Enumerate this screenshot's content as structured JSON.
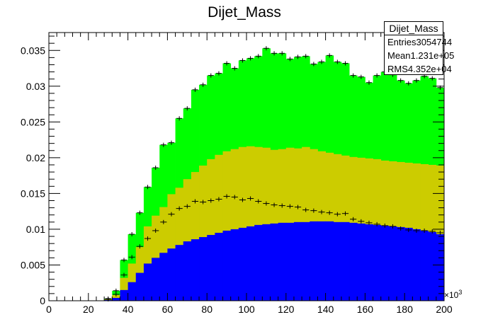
{
  "chart_data": {
    "type": "bar",
    "title": "Dijet_Mass",
    "xlabel": "",
    "ylabel": "",
    "x_multiplier_label": "×10",
    "x_multiplier_exponent": "3",
    "xlim": [
      0,
      200
    ],
    "ylim": [
      0,
      0.0375
    ],
    "x_ticks": [
      0,
      20,
      40,
      60,
      80,
      100,
      120,
      140,
      160,
      180,
      200
    ],
    "x_tick_labels": [
      "0",
      "20",
      "40",
      "60",
      "80",
      "100",
      "120",
      "140",
      "160",
      "180",
      "200"
    ],
    "y_ticks": [
      0,
      0.005,
      0.01,
      0.015,
      0.02,
      0.025,
      0.03,
      0.035
    ],
    "y_tick_labels": [
      "0",
      "0.005",
      "0.01",
      "0.015",
      "0.02",
      "0.025",
      "0.03",
      "0.035"
    ],
    "grid": false,
    "legend": "none",
    "bin_edges_start": 0,
    "bin_width": 4,
    "series": [
      {
        "fill": "#00ff00",
        "values": [
          0,
          0,
          0,
          0,
          0,
          0,
          0,
          0.0003,
          0.0014,
          0.0057,
          0.0093,
          0.0123,
          0.0159,
          0.0186,
          0.0218,
          0.0221,
          0.0255,
          0.0269,
          0.0295,
          0.0302,
          0.0315,
          0.0318,
          0.0332,
          0.0325,
          0.0336,
          0.0339,
          0.0342,
          0.0353,
          0.0346,
          0.0346,
          0.0338,
          0.0341,
          0.0342,
          0.0331,
          0.0334,
          0.0343,
          0.0334,
          0.0332,
          0.0315,
          0.0313,
          0.0305,
          0.0315,
          0.032,
          0.0316,
          0.0308,
          0.0304,
          0.0308,
          0.0314,
          0.0311,
          0.0298
        ]
      },
      {
        "fill": "#cccc00",
        "values": [
          0,
          0,
          0,
          0,
          0,
          0,
          0,
          0.0002,
          0.0008,
          0.0032,
          0.0052,
          0.0075,
          0.0104,
          0.0119,
          0.0131,
          0.0149,
          0.0158,
          0.017,
          0.018,
          0.0189,
          0.0198,
          0.0204,
          0.0209,
          0.0212,
          0.0215,
          0.0216,
          0.0215,
          0.0214,
          0.0211,
          0.0212,
          0.0214,
          0.0213,
          0.0215,
          0.0212,
          0.0209,
          0.0207,
          0.0205,
          0.0203,
          0.0201,
          0.02,
          0.0199,
          0.0198,
          0.0196,
          0.0195,
          0.0194,
          0.0193,
          0.0192,
          0.0191,
          0.019,
          0.0189
        ]
      },
      {
        "fill": "#0000ff",
        "values": [
          0,
          0,
          0,
          0,
          0,
          0,
          0,
          0.0001,
          0.0004,
          0.0015,
          0.0026,
          0.0039,
          0.0052,
          0.006,
          0.0067,
          0.0073,
          0.0078,
          0.0083,
          0.0086,
          0.0089,
          0.0092,
          0.0095,
          0.0098,
          0.01,
          0.0102,
          0.0104,
          0.0106,
          0.0107,
          0.0108,
          0.0109,
          0.0109,
          0.011,
          0.011,
          0.0111,
          0.0111,
          0.0111,
          0.011,
          0.011,
          0.0109,
          0.0108,
          0.0107,
          0.0106,
          0.0105,
          0.0104,
          0.0103,
          0.0102,
          0.01,
          0.0098,
          0.0096,
          0.0093
        ]
      },
      {
        "style": "error-points",
        "values": [
          0,
          0,
          0,
          0,
          0,
          0,
          0,
          0.0002,
          0.0009,
          0.0036,
          0.0061,
          0.0076,
          0.0087,
          0.0098,
          0.011,
          0.0121,
          0.0129,
          0.0132,
          0.0139,
          0.0138,
          0.014,
          0.0142,
          0.0146,
          0.0145,
          0.0141,
          0.0143,
          0.0139,
          0.0136,
          0.0134,
          0.0133,
          0.0132,
          0.0131,
          0.0127,
          0.0126,
          0.0124,
          0.0123,
          0.0121,
          0.0122,
          0.0114,
          0.0111,
          0.0109,
          0.0107,
          0.0105,
          0.0104,
          0.0101,
          0.0099,
          0.0098,
          0.0098,
          0.0097,
          0.0095
        ]
      }
    ],
    "stats": {
      "title": "Dijet_Mass",
      "rows": [
        {
          "label": "Entries",
          "value": "3054744"
        },
        {
          "label": "Mean",
          "value": "1.231e+05"
        },
        {
          "label": "RMS",
          "value": "4.352e+04"
        }
      ]
    }
  }
}
